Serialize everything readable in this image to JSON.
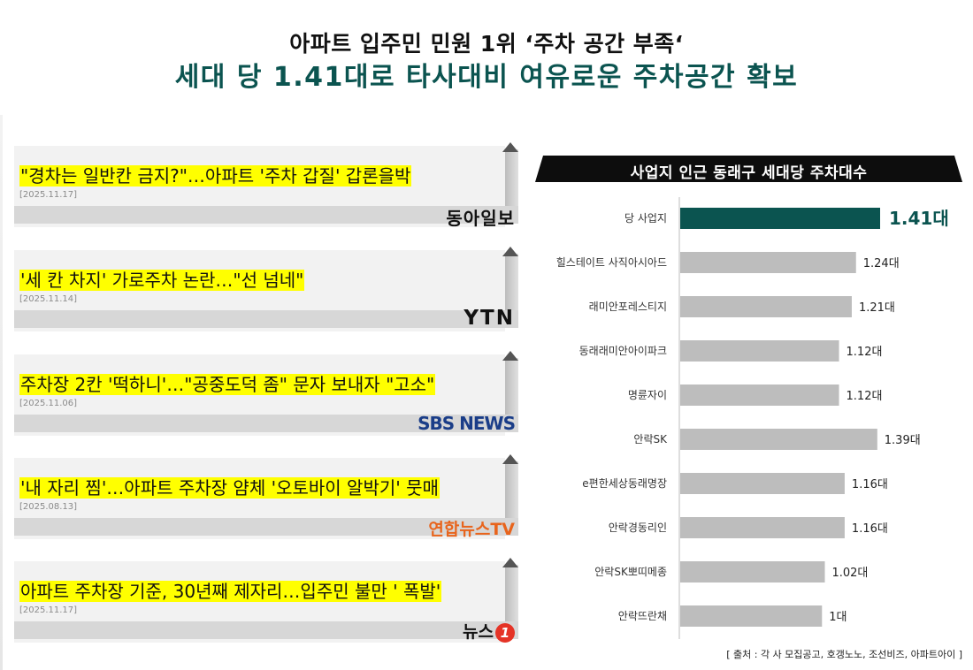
{
  "header": {
    "title": "아파트 입주민 민원 1위 ‘주차 공간 부족‘",
    "subtitle": "세대 당 1.41대로 타사대비 여유로운 주차공간 확보"
  },
  "news": [
    {
      "headline": "\"경차는 일반칸 금지?\"…아파트 '주차 갑질' 갑론을박",
      "date": "[2025.11.17]",
      "source": "동아일보"
    },
    {
      "headline": "'세 칸 차지' 가로주차 논란…\"선 넘네\"",
      "date": "[2025.11.14]",
      "source": "YTN"
    },
    {
      "headline": "주차장 2칸 '떡하니'…\"공중도덕 좀\" 문자 보내자 \"고소\"",
      "date": "[2025.11.06]",
      "source": "SBS NEWS"
    },
    {
      "headline": "'내 자리 찜'…아파트 주차장 얌체 '오토바이 알박기' 뭇매",
      "date": "[2025.08.13]",
      "source": "연합뉴스TV"
    },
    {
      "headline": "아파트 주차장 기준, 30년째 제자리…입주민 불만 ' 폭발'",
      "date": "[2025.11.17]",
      "source_main": "뉴스",
      "source_badge": "1"
    }
  ],
  "colors": {
    "highlight_bar": "#0b5450",
    "other_bar": "#bdbdbd",
    "headline_highlight": "#ffff00",
    "subtitle": "#0b5450"
  },
  "chart_data": {
    "type": "bar",
    "orientation": "horizontal",
    "title": "사업지 인근 동래구 세대당 주차대수",
    "categories": [
      "당 사업지",
      "힐스테이트 사직아시아드",
      "래미안포레스티지",
      "동래래미안아이파크",
      "명륜자이",
      "안락SK",
      "e편한세상동래명장",
      "안락경동리인",
      "안락SK뽀띠메종",
      "안락뜨란채"
    ],
    "values": [
      1.41,
      1.24,
      1.21,
      1.12,
      1.12,
      1.39,
      1.16,
      1.16,
      1.02,
      1.0
    ],
    "value_labels": [
      "1.41대",
      "1.24대",
      "1.21대",
      "1.12대",
      "1.12대",
      "1.39대",
      "1.16대",
      "1.16대",
      "1.02대",
      "1대"
    ],
    "highlight_index": 0,
    "xlim": [
      0,
      1.41
    ],
    "grid": false,
    "legend": "none"
  },
  "source_note": "[ 출처 : 각 사 모집공고, 호갱노노, 조선비즈, 아파트아이 ]"
}
